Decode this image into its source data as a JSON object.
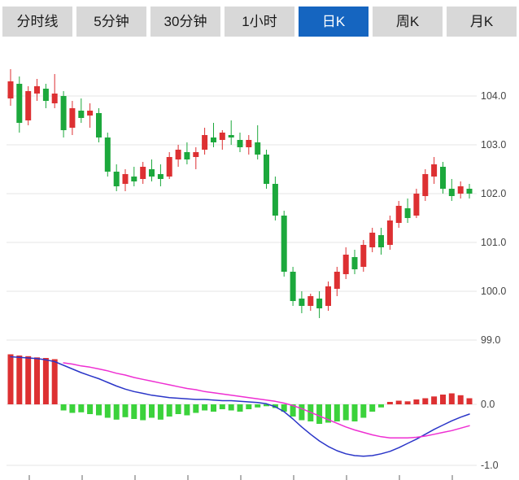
{
  "tabs": [
    {
      "label": "分时线",
      "selected": false
    },
    {
      "label": "5分钟",
      "selected": false
    },
    {
      "label": "30分钟",
      "selected": false
    },
    {
      "label": "1小时",
      "selected": false
    },
    {
      "label": "日K",
      "selected": true
    },
    {
      "label": "周K",
      "selected": false
    },
    {
      "label": "月K",
      "selected": false
    }
  ],
  "colors": {
    "tab_bg": "#d8d8d8",
    "tab_text": "#1a1a1a",
    "tab_selected_bg": "#1565c0",
    "tab_selected_text": "#ffffff",
    "up": "#dd3032",
    "down": "#1ca83c",
    "macd_up": "#dd3032",
    "macd_down": "#3bd23b",
    "dif_line": "#2a35c8",
    "dea_line": "#ee2fd2",
    "grid": "#e4e4e4",
    "axis_text": "#454545",
    "tick_mark": "#999999",
    "background": "#ffffff"
  },
  "chart_data": {
    "type": "candlestick",
    "timeframe_selected": "日K",
    "main_panel": {
      "grid": true,
      "y_ticks": [
        "104.0",
        "103.0",
        "102.0",
        "101.0",
        "100.0",
        "99.0"
      ],
      "ylim": [
        98.85,
        104.9
      ],
      "candles": [
        [
          103.95,
          104.55,
          103.8,
          104.3
        ],
        [
          104.25,
          104.4,
          103.25,
          103.45
        ],
        [
          103.5,
          104.2,
          103.4,
          104.1
        ],
        [
          104.05,
          104.35,
          103.9,
          104.2
        ],
        [
          104.15,
          104.25,
          103.75,
          103.9
        ],
        [
          103.85,
          104.45,
          103.75,
          104.05
        ],
        [
          104.0,
          104.1,
          103.15,
          103.3
        ],
        [
          103.35,
          103.9,
          103.2,
          103.75
        ],
        [
          103.7,
          103.95,
          103.45,
          103.55
        ],
        [
          103.6,
          103.85,
          103.35,
          103.7
        ],
        [
          103.65,
          103.75,
          103.05,
          103.15
        ],
        [
          103.15,
          103.25,
          102.35,
          102.45
        ],
        [
          102.45,
          102.6,
          102.05,
          102.15
        ],
        [
          102.2,
          102.5,
          102.05,
          102.4
        ],
        [
          102.35,
          102.55,
          102.15,
          102.25
        ],
        [
          102.3,
          102.65,
          102.2,
          102.55
        ],
        [
          102.5,
          102.7,
          102.25,
          102.35
        ],
        [
          102.4,
          102.6,
          102.15,
          102.3
        ],
        [
          102.35,
          102.85,
          102.3,
          102.75
        ],
        [
          102.7,
          103.0,
          102.55,
          102.9
        ],
        [
          102.85,
          103.05,
          102.6,
          102.7
        ],
        [
          102.75,
          102.95,
          102.5,
          102.85
        ],
        [
          102.9,
          103.35,
          102.8,
          103.2
        ],
        [
          103.15,
          103.45,
          102.95,
          103.05
        ],
        [
          103.1,
          103.3,
          102.9,
          103.25
        ],
        [
          103.2,
          103.5,
          103.0,
          103.15
        ],
        [
          103.1,
          103.25,
          102.85,
          102.95
        ],
        [
          102.95,
          103.2,
          102.8,
          103.1
        ],
        [
          103.05,
          103.4,
          102.7,
          102.8
        ],
        [
          102.8,
          102.9,
          102.1,
          102.2
        ],
        [
          102.2,
          102.35,
          101.45,
          101.55
        ],
        [
          101.55,
          101.65,
          100.3,
          100.4
        ],
        [
          100.4,
          100.5,
          99.7,
          99.8
        ],
        [
          99.85,
          100.0,
          99.55,
          99.7
        ],
        [
          99.7,
          99.95,
          99.6,
          99.9
        ],
        [
          99.85,
          100.0,
          99.45,
          99.65
        ],
        [
          99.7,
          100.2,
          99.6,
          100.1
        ],
        [
          100.05,
          100.5,
          99.9,
          100.4
        ],
        [
          100.35,
          100.9,
          100.25,
          100.75
        ],
        [
          100.7,
          100.85,
          100.35,
          100.45
        ],
        [
          100.5,
          101.05,
          100.4,
          100.95
        ],
        [
          100.9,
          101.3,
          100.8,
          101.2
        ],
        [
          101.15,
          101.3,
          100.75,
          100.9
        ],
        [
          100.95,
          101.55,
          100.85,
          101.45
        ],
        [
          101.4,
          101.85,
          101.3,
          101.75
        ],
        [
          101.7,
          101.9,
          101.4,
          101.5
        ],
        [
          101.55,
          102.1,
          101.5,
          102.0
        ],
        [
          101.95,
          102.5,
          101.85,
          102.4
        ],
        [
          102.35,
          102.75,
          102.2,
          102.6
        ],
        [
          102.55,
          102.65,
          102.0,
          102.1
        ],
        [
          102.1,
          102.3,
          101.85,
          101.95
        ],
        [
          102.0,
          102.25,
          101.9,
          102.15
        ],
        [
          102.1,
          102.2,
          101.9,
          102.0
        ]
      ]
    },
    "indicator_panel": {
      "type": "macd",
      "grid": true,
      "y_ticks": [
        "0.0",
        "-1.0"
      ],
      "ylim": [
        -1.15,
        0.85
      ],
      "histogram": [
        0.82,
        0.8,
        0.79,
        0.77,
        0.76,
        0.74,
        -0.1,
        -0.14,
        -0.13,
        -0.16,
        -0.18,
        -0.22,
        -0.25,
        -0.21,
        -0.24,
        -0.26,
        -0.22,
        -0.25,
        -0.2,
        -0.16,
        -0.18,
        -0.14,
        -0.1,
        -0.12,
        -0.08,
        -0.1,
        -0.12,
        -0.08,
        -0.05,
        -0.03,
        -0.06,
        -0.12,
        -0.2,
        -0.26,
        -0.28,
        -0.32,
        -0.3,
        -0.28,
        -0.26,
        -0.28,
        -0.22,
        -0.12,
        -0.05,
        0.04,
        0.06,
        0.05,
        0.08,
        0.1,
        0.13,
        0.16,
        0.18,
        0.15,
        0.1
      ],
      "dif": [
        0.78,
        0.77,
        0.76,
        0.75,
        0.73,
        0.7,
        0.64,
        0.58,
        0.52,
        0.47,
        0.42,
        0.36,
        0.3,
        0.25,
        0.21,
        0.18,
        0.15,
        0.13,
        0.11,
        0.1,
        0.09,
        0.08,
        0.08,
        0.07,
        0.06,
        0.06,
        0.05,
        0.04,
        0.03,
        0.01,
        -0.04,
        -0.12,
        -0.24,
        -0.37,
        -0.49,
        -0.6,
        -0.69,
        -0.76,
        -0.81,
        -0.84,
        -0.85,
        -0.84,
        -0.81,
        -0.77,
        -0.71,
        -0.64,
        -0.57,
        -0.49,
        -0.41,
        -0.34,
        -0.27,
        -0.21,
        -0.16
      ],
      "dea": [
        null,
        null,
        null,
        null,
        null,
        null,
        0.68,
        0.66,
        0.63,
        0.61,
        0.58,
        0.55,
        0.51,
        0.48,
        0.44,
        0.41,
        0.38,
        0.35,
        0.32,
        0.29,
        0.26,
        0.24,
        0.21,
        0.19,
        0.17,
        0.15,
        0.13,
        0.11,
        0.09,
        0.07,
        0.05,
        0.02,
        -0.02,
        -0.07,
        -0.13,
        -0.19,
        -0.25,
        -0.31,
        -0.37,
        -0.42,
        -0.46,
        -0.5,
        -0.53,
        -0.55,
        -0.55,
        -0.55,
        -0.54,
        -0.52,
        -0.49,
        -0.46,
        -0.43,
        -0.39,
        -0.35
      ]
    }
  }
}
